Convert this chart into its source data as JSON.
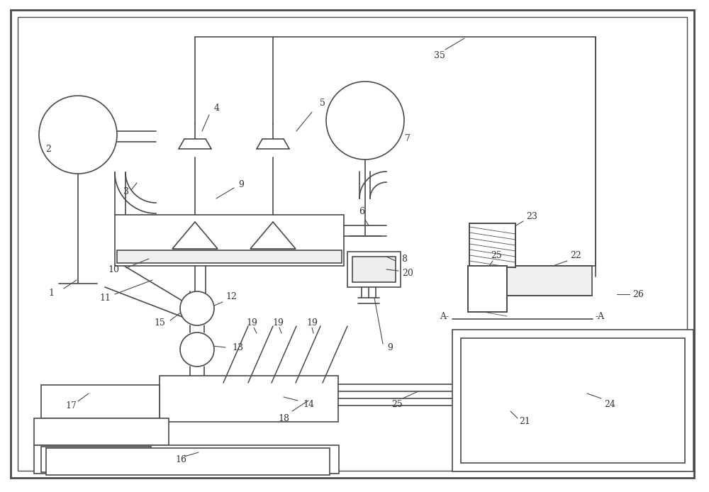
{
  "bg": "#ffffff",
  "lc": "#4a4a4a",
  "lw": 1.2,
  "fig_w": 10.0,
  "fig_h": 6.94
}
